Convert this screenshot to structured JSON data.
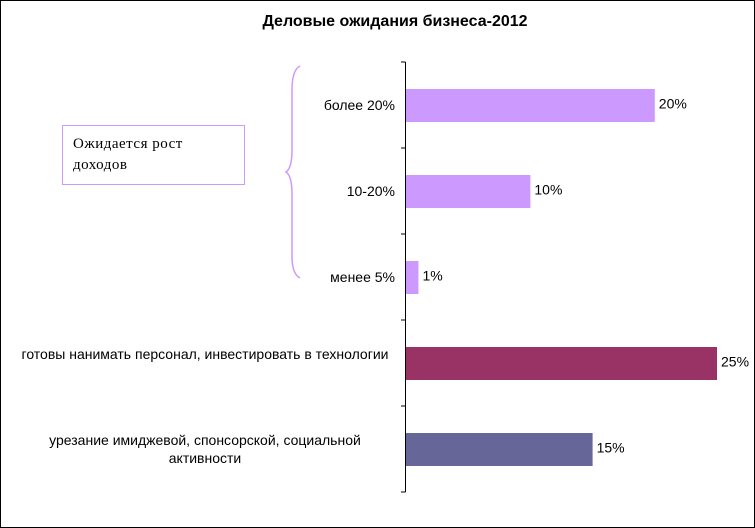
{
  "chart_data": {
    "type": "bar",
    "orientation": "horizontal",
    "title": "Деловые ожидания бизнеса-2012",
    "annotation": "Ожидается рост доходов",
    "categories": [
      "более 20%",
      "10-20%",
      "менее 5%",
      "готовы нанимать персонал, инвестировать в технологии",
      "урезание имиджевой, спонсорской, социальной активности"
    ],
    "values": [
      20,
      10,
      1,
      25,
      15
    ],
    "value_labels": [
      "20%",
      "10%",
      "1%",
      "25%",
      "15%"
    ],
    "colors": [
      "#cc99ff",
      "#cc99ff",
      "#cc99ff",
      "#993366",
      "#666699"
    ]
  }
}
